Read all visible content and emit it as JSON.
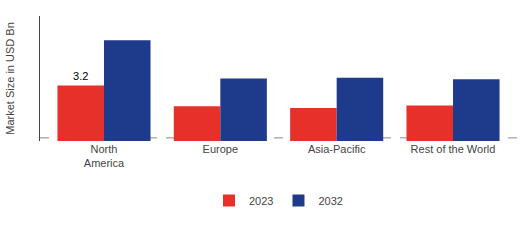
{
  "chart_data": {
    "type": "bar",
    "categories": [
      "North\nAmerica",
      "Europe",
      "Asia-Pacific",
      "Rest of the World"
    ],
    "series": [
      {
        "name": "2023",
        "color": "#e8302a",
        "values": [
          3.2,
          2.0,
          1.9,
          2.05
        ]
      },
      {
        "name": "2032",
        "color": "#1e3a8a",
        "values": [
          5.8,
          3.6,
          3.65,
          3.55
        ]
      }
    ],
    "ylabel": "Market Size in USD Bn",
    "ylim": [
      0,
      7.2
    ],
    "tick_labels": "x",
    "grid": false,
    "legend": "bottom",
    "annotations": [
      {
        "text": "3.2",
        "category": "North\nAmerica",
        "series": "2023"
      }
    ],
    "reference_line": {
      "y": 0.18,
      "line_style": "dashed"
    }
  }
}
